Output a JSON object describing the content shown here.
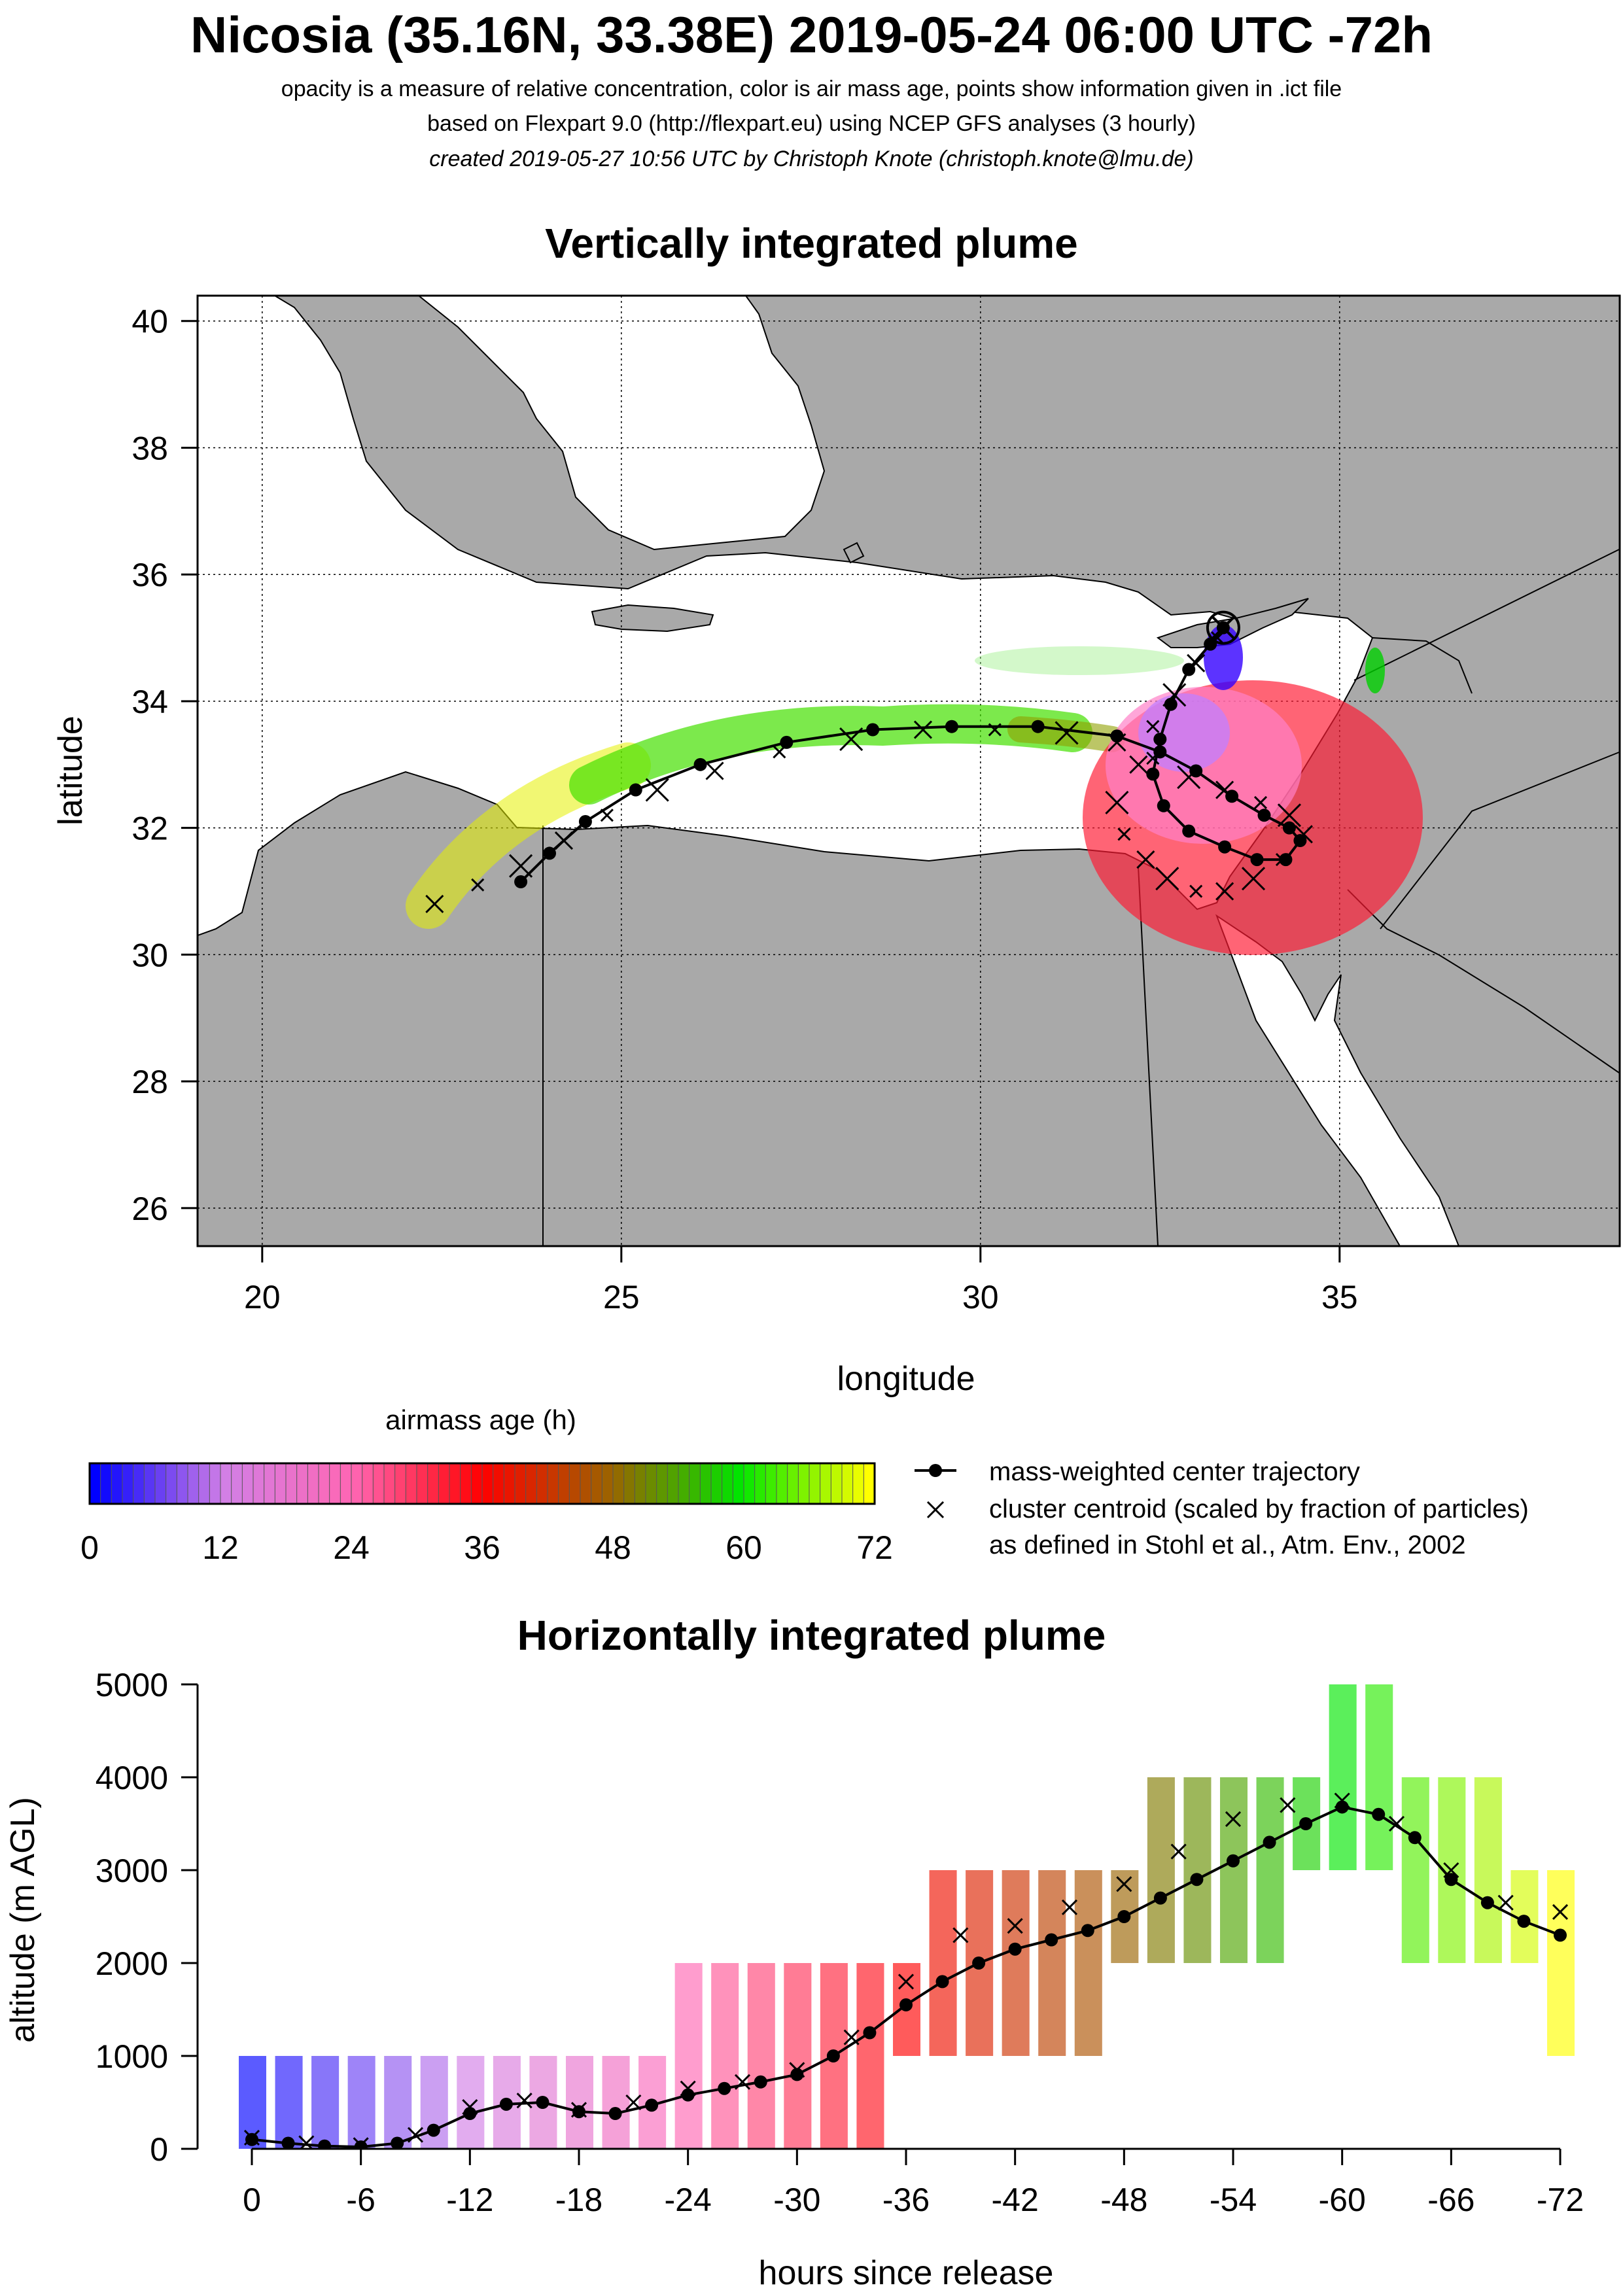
{
  "header": {
    "title": "Nicosia (35.16N, 33.38E) 2019-05-24 06:00 UTC -72h",
    "line1": "opacity is a measure of relative concentration, color is air mass age, points show information given in .ict file",
    "line2": "based on Flexpart 9.0 (http://flexpart.eu) using NCEP GFS analyses (3 hourly)",
    "line3": "created 2019-05-27 10:56 UTC by Christoph Knote (christoph.knote@lmu.de)"
  },
  "colors": {
    "ocean": "#ffffff",
    "land": "#a9a9a9",
    "age_scale": [
      "#0000ff",
      "#d27fe6",
      "#ff66b3",
      "#ff0000",
      "#9b6400",
      "#00e600",
      "#ffff00"
    ]
  },
  "chart_data": [
    {
      "type": "scatter",
      "title": "Vertically integrated plume",
      "xlabel": "longitude",
      "ylabel": "latitude",
      "xlim": [
        19.1,
        38.9
      ],
      "ylim": [
        25.4,
        40.4
      ],
      "xticks": [
        "20",
        "25",
        "30",
        "35"
      ],
      "yticks": [
        "26",
        "28",
        "30",
        "32",
        "34",
        "36",
        "38",
        "40"
      ],
      "grid": true,
      "release_point": {
        "lon": 33.38,
        "lat": 35.16
      },
      "series": [
        {
          "name": "mass-weighted center trajectory",
          "lon": [
            33.38,
            33.2,
            32.9,
            32.65,
            32.5,
            32.4,
            32.55,
            32.9,
            33.4,
            33.85,
            34.25,
            34.45,
            34.3,
            33.95,
            33.5,
            33.0,
            32.5,
            31.9,
            30.8,
            29.6,
            28.5,
            27.3,
            26.1,
            25.2,
            24.5,
            24.0,
            23.6
          ],
          "lat": [
            35.16,
            34.9,
            34.5,
            33.95,
            33.4,
            32.85,
            32.35,
            31.95,
            31.7,
            31.5,
            31.5,
            31.8,
            32.0,
            32.2,
            32.5,
            32.9,
            33.2,
            33.45,
            33.6,
            33.6,
            33.55,
            33.35,
            33.0,
            32.6,
            32.1,
            31.6,
            31.15
          ]
        },
        {
          "name": "cluster centroid (scaled by fraction of particles)",
          "lon": [
            33.3,
            33.0,
            32.7,
            32.4,
            32.2,
            31.9,
            32.0,
            32.3,
            32.6,
            33.0,
            33.4,
            33.8,
            34.2,
            34.5,
            34.3,
            33.9,
            33.4,
            32.9,
            32.4,
            31.9,
            31.2,
            30.2,
            29.2,
            28.2,
            27.2,
            26.3,
            25.5,
            24.8,
            24.2,
            23.6,
            23.0,
            22.4
          ],
          "lat": [
            35.0,
            34.6,
            34.1,
            33.6,
            33.0,
            32.4,
            31.9,
            31.5,
            31.2,
            31.0,
            31.0,
            31.2,
            31.5,
            31.9,
            32.2,
            32.4,
            32.6,
            32.8,
            33.1,
            33.35,
            33.5,
            33.55,
            33.55,
            33.4,
            33.2,
            32.9,
            32.6,
            32.2,
            31.8,
            31.4,
            31.1,
            30.8
          ]
        }
      ]
    },
    {
      "type": "line",
      "title": "Horizontally integrated plume",
      "xlabel": "hours since release",
      "ylabel": "altitude (m AGL)",
      "xlim": [
        0,
        -72
      ],
      "ylim": [
        0,
        5000
      ],
      "xticks": [
        "0",
        "-6",
        "-12",
        "-18",
        "-24",
        "-30",
        "-36",
        "-42",
        "-48",
        "-54",
        "-60",
        "-66",
        "-72"
      ],
      "yticks": [
        "0",
        "1000",
        "2000",
        "3000",
        "4000",
        "5000"
      ],
      "series": [
        {
          "name": "mass-weighted center trajectory",
          "x": [
            0,
            -2,
            -4,
            -6,
            -8,
            -10,
            -12,
            -14,
            -16,
            -18,
            -20,
            -22,
            -24,
            -26,
            -28,
            -30,
            -32,
            -34,
            -36,
            -38,
            -40,
            -42,
            -44,
            -46,
            -48,
            -50,
            -52,
            -54,
            -56,
            -58,
            -60,
            -62,
            -64,
            -66,
            -68,
            -70,
            -72
          ],
          "y": [
            100,
            60,
            30,
            20,
            60,
            200,
            380,
            480,
            500,
            400,
            380,
            470,
            580,
            650,
            720,
            800,
            1000,
            1250,
            1550,
            1800,
            2000,
            2150,
            2250,
            2350,
            2500,
            2700,
            2900,
            3100,
            3300,
            3500,
            3680,
            3600,
            3350,
            2900,
            2650,
            2450,
            2300
          ]
        },
        {
          "name": "cluster centroid (scaled by fraction of particles)",
          "x": [
            0,
            -3,
            -6,
            -9,
            -12,
            -15,
            -18,
            -21,
            -24,
            -27,
            -30,
            -33,
            -36,
            -39,
            -42,
            -45,
            -48,
            -51,
            -54,
            -57,
            -60,
            -63,
            -66,
            -69,
            -72
          ],
          "y": [
            120,
            60,
            40,
            150,
            450,
            520,
            420,
            500,
            650,
            720,
            850,
            1200,
            1800,
            2300,
            2400,
            2600,
            2850,
            3200,
            3550,
            3700,
            3750,
            3500,
            3000,
            2650,
            2550
          ]
        }
      ]
    }
  ],
  "legend": {
    "colorbar_title": "airmass age (h)",
    "colorbar_ticks": [
      "0",
      "12",
      "24",
      "36",
      "48",
      "60",
      "72"
    ],
    "center_label": "mass-weighted center trajectory",
    "cluster_label": "cluster centroid (scaled by fraction of particles)",
    "cluster_note": "as defined in Stohl et al., Atm. Env., 2002"
  }
}
